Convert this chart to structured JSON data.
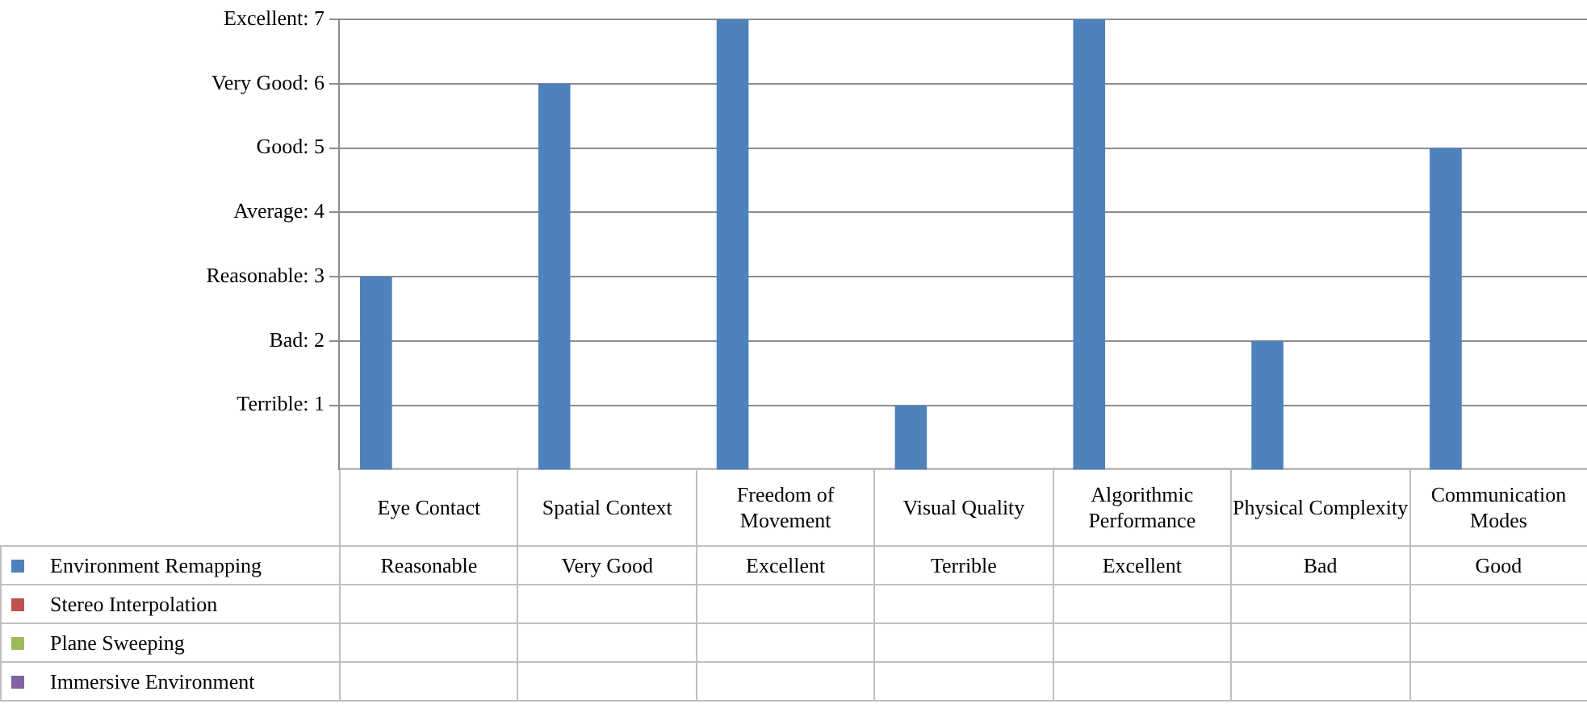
{
  "chart_data": {
    "type": "bar",
    "categories": [
      "Eye Contact",
      "Spatial Context",
      "Freedom of Movement",
      "Visual Quality",
      "Algorithmic Performance",
      "Physical Complexity",
      "Communication Modes"
    ],
    "series": [
      {
        "name": "Environment Remapping",
        "color": "#4f81bd",
        "values": [
          3,
          6,
          7,
          1,
          7,
          2,
          5
        ],
        "value_labels": [
          "Reasonable",
          "Very Good",
          "Excellent",
          "Terrible",
          "Excellent",
          "Bad",
          "Good"
        ]
      },
      {
        "name": "Stereo Interpolation",
        "color": "#c0504d",
        "values": [
          null,
          null,
          null,
          null,
          null,
          null,
          null
        ]
      },
      {
        "name": "Plane Sweeping",
        "color": "#9bbb59",
        "values": [
          null,
          null,
          null,
          null,
          null,
          null,
          null
        ]
      },
      {
        "name": "Immersive Environment",
        "color": "#8064a2",
        "values": [
          null,
          null,
          null,
          null,
          null,
          null,
          null
        ]
      }
    ],
    "ylim": [
      0,
      7
    ],
    "yticks": [
      {
        "value": 1,
        "label": "Terrible: 1"
      },
      {
        "value": 2,
        "label": "Bad: 2"
      },
      {
        "value": 3,
        "label": "Reasonable: 3"
      },
      {
        "value": 4,
        "label": "Average: 4"
      },
      {
        "value": 5,
        "label": "Good: 5"
      },
      {
        "value": 6,
        "label": "Very Good: 6"
      },
      {
        "value": 7,
        "label": "Excellent: 7"
      }
    ],
    "grid": "y",
    "legend": "bottom left"
  }
}
